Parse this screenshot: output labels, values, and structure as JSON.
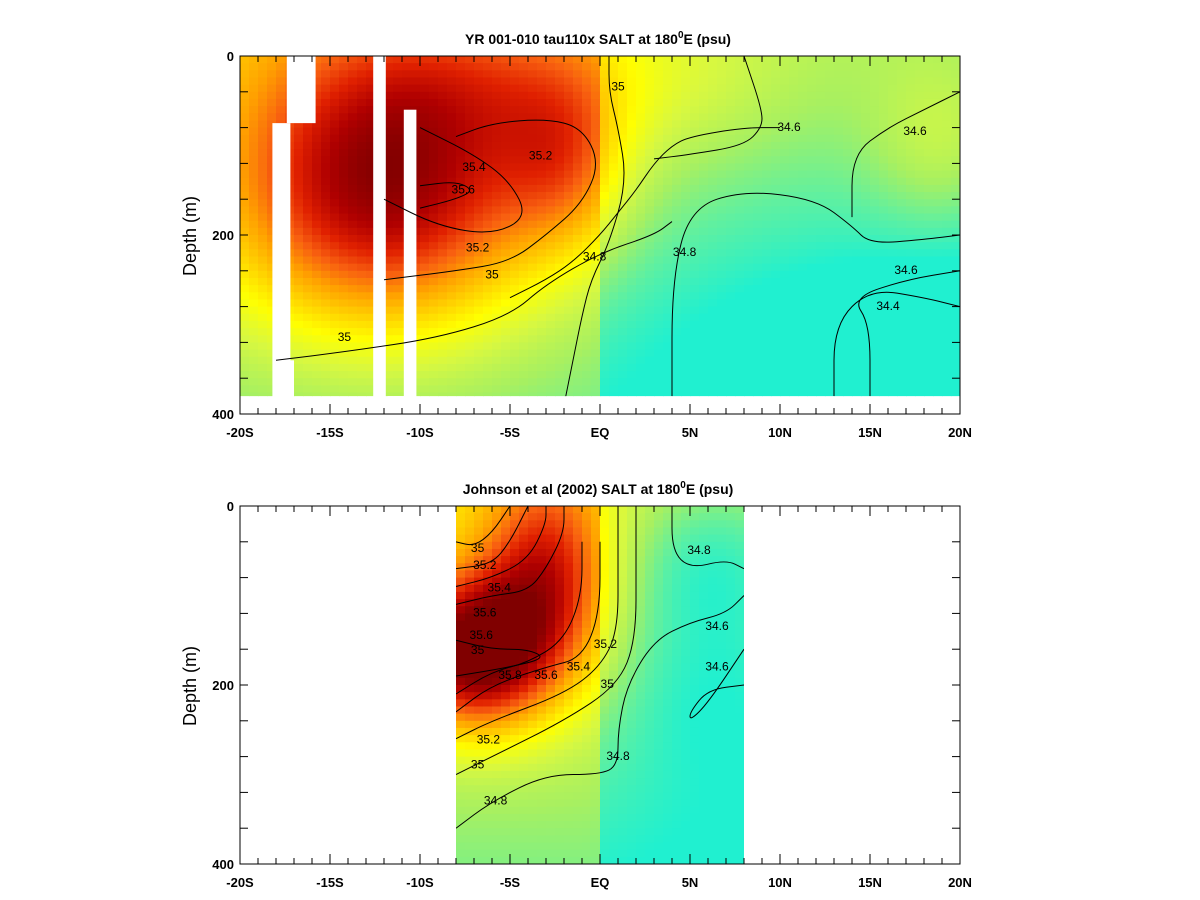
{
  "chart_data": [
    {
      "type": "heatmap",
      "title_main": "YR 001-010 tau110x SALT at 180",
      "title_sup": "0",
      "title_tail": "E (psu)",
      "xlabel": "",
      "ylabel": "Depth (m)",
      "xlim": [
        -20,
        20
      ],
      "ylim": [
        0,
        400
      ],
      "y_inverted": true,
      "x_ticks": [
        -20,
        -15,
        -10,
        -5,
        0,
        5,
        10,
        15,
        20
      ],
      "x_tick_labels": [
        "-20S",
        "-15S",
        "-10S",
        "-5S",
        "EQ",
        "5N",
        "10N",
        "15N",
        "20N"
      ],
      "y_ticks": [
        0,
        200,
        400
      ],
      "y_tick_labels": [
        "0",
        "200",
        "400"
      ],
      "data_xlim": [
        -20,
        20
      ],
      "data_ylim": [
        0,
        380
      ],
      "colormap": [
        "#20f0d0",
        "#60f0a0",
        "#a8f060",
        "#d8f840",
        "#ffff00",
        "#ffd000",
        "#ffa000",
        "#f86010",
        "#e02000",
        "#b00000",
        "#800000"
      ],
      "color_range": [
        34.2,
        36.0
      ],
      "gaps": [
        {
          "x": [
            -18.2,
            -17.2
          ],
          "y": [
            75,
            400
          ]
        },
        {
          "x": [
            -17.4,
            -15.8
          ],
          "y": [
            0,
            75
          ]
        },
        {
          "x": [
            -17.4,
            -17.0
          ],
          "y": [
            340,
            400
          ]
        },
        {
          "x": [
            -12.6,
            -11.9
          ],
          "y": [
            0,
            400
          ]
        },
        {
          "x": [
            -11.8,
            -10.9
          ],
          "y": [
            380,
            400
          ]
        },
        {
          "x": [
            -10.9,
            -10.2
          ],
          "y": [
            60,
            400
          ]
        }
      ],
      "field": [
        {
          "x": -12,
          "z": 150,
          "v": 36.0,
          "sx": 6,
          "sz": 110
        },
        {
          "x": -2,
          "z": 120,
          "v": 35.2,
          "sx": 2.5,
          "sz": 70
        },
        {
          "x": -6,
          "z": 30,
          "v": 35.0,
          "sx": 6,
          "sz": 60
        },
        {
          "x": 5,
          "z": 40,
          "v": 34.8,
          "sx": 5,
          "sz": 60
        },
        {
          "x": 8,
          "z": 300,
          "v": 34.6,
          "sx": 10,
          "sz": 100
        },
        {
          "x": 18,
          "z": 350,
          "v": 34.2,
          "sx": 5,
          "sz": 60
        },
        {
          "x": 19,
          "z": 100,
          "v": 35.0,
          "sx": 3,
          "sz": 70
        }
      ],
      "contours": [
        {
          "value": 35,
          "points": [
            [
              -18,
              340
            ],
            [
              -14,
              330
            ],
            [
              -9,
              315
            ],
            [
              -5,
              290
            ],
            [
              -3,
              255
            ],
            [
              0,
              220
            ],
            [
              3,
              200
            ],
            [
              4,
              185
            ]
          ]
        },
        {
          "value": 35,
          "points": [
            [
              -5,
              270
            ],
            [
              -3,
              250
            ],
            [
              -1.5,
              230
            ],
            [
              0,
              200
            ],
            [
              1,
              175
            ],
            [
              2,
              150
            ],
            [
              3,
              120
            ],
            [
              4,
              100
            ],
            [
              5,
              90
            ],
            [
              8,
              80
            ],
            [
              10,
              80
            ]
          ]
        },
        {
          "value": 35.2,
          "points": [
            [
              -12,
              250
            ],
            [
              -8,
              240
            ],
            [
              -5,
              230
            ],
            [
              -3,
              200
            ],
            [
              -1,
              165
            ],
            [
              0,
              120
            ],
            [
              -1,
              80
            ],
            [
              -3,
              70
            ],
            [
              -6,
              75
            ],
            [
              -8,
              90
            ]
          ]
        },
        {
          "value": 35.4,
          "points": [
            [
              -10,
              80
            ],
            [
              -7,
              110
            ],
            [
              -5,
              140
            ],
            [
              -4,
              180
            ],
            [
              -6,
              200
            ],
            [
              -9,
              190
            ],
            [
              -12,
              160
            ]
          ]
        },
        {
          "value": 35.6,
          "points": [
            [
              -10,
              170
            ],
            [
              -8,
              160
            ],
            [
              -7,
              150
            ],
            [
              -8,
              140
            ],
            [
              -10,
              145
            ]
          ]
        },
        {
          "value": 34.8,
          "points": [
            [
              -2,
              390
            ],
            [
              -1.5,
              340
            ],
            [
              -1,
              290
            ],
            [
              -0.5,
              250
            ],
            [
              0.5,
              210
            ],
            [
              1.5,
              140
            ],
            [
              1,
              80
            ],
            [
              0.5,
              40
            ],
            [
              0.5,
              0
            ]
          ]
        },
        {
          "value": 34.8,
          "points": [
            [
              4,
              380
            ],
            [
              4,
              250
            ],
            [
              5,
              170
            ],
            [
              8,
              150
            ],
            [
              12,
              160
            ],
            [
              14,
              190
            ],
            [
              15,
              210
            ],
            [
              18,
              205
            ],
            [
              20,
              200
            ]
          ]
        },
        {
          "value": 34.6,
          "points": [
            [
              8,
              0
            ],
            [
              9,
              60
            ],
            [
              9,
              80
            ],
            [
              8,
              100
            ],
            [
              5,
              110
            ],
            [
              3,
              115
            ]
          ]
        },
        {
          "value": 34.6,
          "points": [
            [
              15,
              380
            ],
            [
              15,
              300
            ],
            [
              14,
              270
            ],
            [
              17,
              250
            ],
            [
              20,
              240
            ]
          ]
        },
        {
          "value": 34.4,
          "points": [
            [
              13,
              380
            ],
            [
              13,
              300
            ],
            [
              15,
              260
            ],
            [
              18,
              270
            ],
            [
              20,
              280
            ]
          ]
        },
        {
          "value": 34.6,
          "points": [
            [
              14,
              180
            ],
            [
              14,
              110
            ],
            [
              16,
              80
            ],
            [
              18,
              60
            ],
            [
              20,
              40
            ]
          ]
        }
      ],
      "contour_labels": [
        {
          "text": "35.4",
          "x": -7.0,
          "z": 125
        },
        {
          "text": "35.6",
          "x": -7.6,
          "z": 150
        },
        {
          "text": "35.2",
          "x": -3.3,
          "z": 112
        },
        {
          "text": "35",
          "x": 1.0,
          "z": 35
        },
        {
          "text": "35.2",
          "x": -6.8,
          "z": 215
        },
        {
          "text": "35",
          "x": -6.0,
          "z": 245
        },
        {
          "text": "35",
          "x": -14.2,
          "z": 315
        },
        {
          "text": "34.8",
          "x": -0.3,
          "z": 225
        },
        {
          "text": "34.8",
          "x": 4.7,
          "z": 220
        },
        {
          "text": "34.6",
          "x": 10.5,
          "z": 80
        },
        {
          "text": "34.6",
          "x": 17.5,
          "z": 85
        },
        {
          "text": "34.6",
          "x": 17.0,
          "z": 240
        },
        {
          "text": "34.4",
          "x": 16.0,
          "z": 280
        }
      ]
    },
    {
      "type": "heatmap",
      "title_main": "Johnson et al (2002) SALT at 180",
      "title_sup": "0",
      "title_tail": "E (psu)",
      "xlabel": "",
      "ylabel": "Depth (m)",
      "xlim": [
        -20,
        20
      ],
      "ylim": [
        0,
        400
      ],
      "y_inverted": true,
      "x_ticks": [
        -20,
        -15,
        -10,
        -5,
        0,
        5,
        10,
        15,
        20
      ],
      "x_tick_labels": [
        "-20S",
        "-15S",
        "-10S",
        "-5S",
        "EQ",
        "5N",
        "10N",
        "15N",
        "20N"
      ],
      "y_ticks": [
        0,
        200,
        400
      ],
      "y_tick_labels": [
        "0",
        "200",
        "400"
      ],
      "data_xlim": [
        -8,
        8
      ],
      "data_ylim": [
        0,
        400
      ],
      "colormap": [
        "#20f0d0",
        "#60f0a0",
        "#a8f060",
        "#d8f840",
        "#ffff00",
        "#ffd000",
        "#ffa000",
        "#f86010",
        "#e02000",
        "#b00000",
        "#800000"
      ],
      "color_range": [
        34.2,
        36.0
      ],
      "gaps": [],
      "field": [
        {
          "x": -7,
          "z": 165,
          "v": 36.2,
          "sx": 3.0,
          "sz": 60
        },
        {
          "x": -3,
          "z": 80,
          "v": 35.6,
          "sx": 2.5,
          "sz": 80
        },
        {
          "x": 6,
          "z": 60,
          "v": 34.4,
          "sx": 3,
          "sz": 60
        },
        {
          "x": 6,
          "z": 200,
          "v": 34.5,
          "sx": 3,
          "sz": 80
        }
      ],
      "contours": [
        {
          "value": 35,
          "points": [
            [
              -8,
              40
            ],
            [
              -7,
              45
            ],
            [
              -6,
              30
            ],
            [
              -5,
              0
            ]
          ]
        },
        {
          "value": 35.2,
          "points": [
            [
              -8,
              70
            ],
            [
              -6,
              65
            ],
            [
              -5,
              40
            ],
            [
              -4,
              0
            ]
          ]
        },
        {
          "value": 35.4,
          "points": [
            [
              -8,
              90
            ],
            [
              -6,
              80
            ],
            [
              -4,
              60
            ],
            [
              -3,
              20
            ],
            [
              -3,
              0
            ]
          ]
        },
        {
          "value": 35.6,
          "points": [
            [
              -8,
              110
            ],
            [
              -6,
              100
            ],
            [
              -4,
              95
            ],
            [
              -3,
              70
            ],
            [
              -2,
              30
            ],
            [
              -2,
              0
            ]
          ]
        },
        {
          "value": 35.8,
          "points": [
            [
              -8,
              150
            ],
            [
              -6,
              160
            ],
            [
              -4,
              160
            ],
            [
              -3,
              170
            ],
            [
              -5,
              180
            ],
            [
              -8,
              190
            ]
          ]
        },
        {
          "value": 35.8,
          "points": [
            [
              -8,
              210
            ],
            [
              -6,
              185
            ],
            [
              -4,
              175
            ],
            [
              -2,
              150
            ],
            [
              -1,
              100
            ],
            [
              -1,
              40
            ]
          ]
        },
        {
          "value": 35.6,
          "points": [
            [
              -8,
              230
            ],
            [
              -6,
              200
            ],
            [
              -3,
              180
            ],
            [
              -1,
              170
            ],
            [
              0,
              120
            ],
            [
              0,
              40
            ]
          ]
        },
        {
          "value": 35.2,
          "points": [
            [
              -8,
              260
            ],
            [
              -6,
              240
            ],
            [
              -2,
              210
            ],
            [
              0,
              180
            ],
            [
              1,
              140
            ],
            [
              1,
              60
            ],
            [
              1,
              0
            ]
          ]
        },
        {
          "value": 35,
          "points": [
            [
              -8,
              300
            ],
            [
              -6,
              280
            ],
            [
              -2,
              240
            ],
            [
              1,
              200
            ],
            [
              2,
              150
            ],
            [
              2,
              60
            ],
            [
              2,
              0
            ]
          ]
        },
        {
          "value": 34.8,
          "points": [
            [
              -8,
              360
            ],
            [
              -6,
              330
            ],
            [
              -3,
              300
            ],
            [
              0,
              300
            ],
            [
              1,
              290
            ],
            [
              1,
              250
            ],
            [
              1.5,
              200
            ],
            [
              3,
              150
            ],
            [
              5,
              130
            ],
            [
              7,
              120
            ],
            [
              8,
              100
            ]
          ]
        },
        {
          "value": 34.6,
          "points": [
            [
              4,
              0
            ],
            [
              4,
              50
            ],
            [
              5,
              70
            ],
            [
              7,
              60
            ],
            [
              8,
              70
            ]
          ]
        },
        {
          "value": 34.6,
          "points": [
            [
              8,
              200
            ],
            [
              6,
              205
            ],
            [
              5,
              230
            ],
            [
              5,
              240
            ],
            [
              6,
              220
            ],
            [
              8,
              160
            ]
          ]
        }
      ],
      "contour_labels": [
        {
          "text": "35",
          "x": -6.8,
          "z": 48
        },
        {
          "text": "35.2",
          "x": -6.4,
          "z": 67
        },
        {
          "text": "35.4",
          "x": -5.6,
          "z": 92
        },
        {
          "text": "35.6",
          "x": -6.4,
          "z": 120
        },
        {
          "text": "35.6",
          "x": -6.6,
          "z": 145
        },
        {
          "text": "35",
          "x": -6.8,
          "z": 162
        },
        {
          "text": "35.8",
          "x": -5.0,
          "z": 190
        },
        {
          "text": "35.6",
          "x": -3.0,
          "z": 190
        },
        {
          "text": "35.4",
          "x": -1.2,
          "z": 180
        },
        {
          "text": "35.2",
          "x": 0.3,
          "z": 155
        },
        {
          "text": "35",
          "x": 0.4,
          "z": 200
        },
        {
          "text": "35.2",
          "x": -6.2,
          "z": 262
        },
        {
          "text": "35",
          "x": -6.8,
          "z": 290
        },
        {
          "text": "34.8",
          "x": 1.0,
          "z": 280
        },
        {
          "text": "34.8",
          "x": -5.8,
          "z": 330
        },
        {
          "text": "34.8",
          "x": 5.5,
          "z": 50
        },
        {
          "text": "34.6",
          "x": 6.5,
          "z": 135
        },
        {
          "text": "34.6",
          "x": 6.5,
          "z": 180
        }
      ]
    }
  ]
}
